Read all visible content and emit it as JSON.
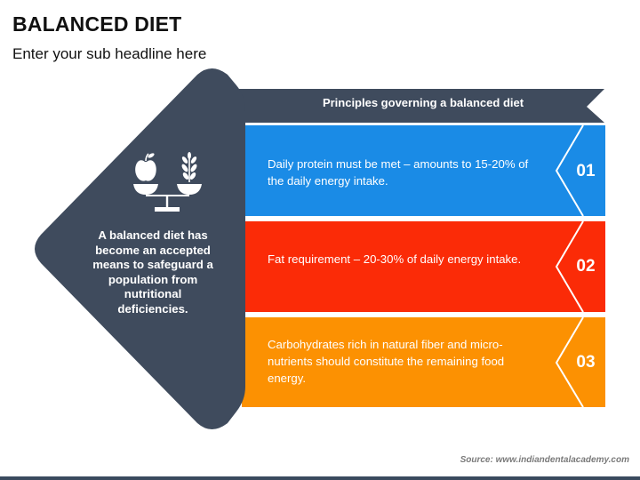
{
  "slide": {
    "title": "BALANCED DIET",
    "subtitle": "Enter your sub headline here",
    "source": "Source: www.indiandentalacademy.com"
  },
  "left_panel": {
    "text": "A balanced diet has become an accepted means to safeguard a population from nutritional deficiencies.",
    "icon": "balance-scale-apple-wheat-icon",
    "color": "#3f4b5d"
  },
  "header": {
    "text": "Principles governing a balanced diet",
    "color": "#3f4b5d"
  },
  "rows": [
    {
      "number": "01",
      "text": "Daily protein must be met – amounts to 15-20% of the daily energy intake.",
      "color": "#1a8be6"
    },
    {
      "number": "02",
      "text": "Fat requirement – 20-30% of daily energy intake.",
      "color": "#fb2b07"
    },
    {
      "number": "03",
      "text": "Carbohydrates rich in natural fiber and micro-nutrients should constitute the remaining food energy.",
      "color": "#fc9102"
    }
  ]
}
